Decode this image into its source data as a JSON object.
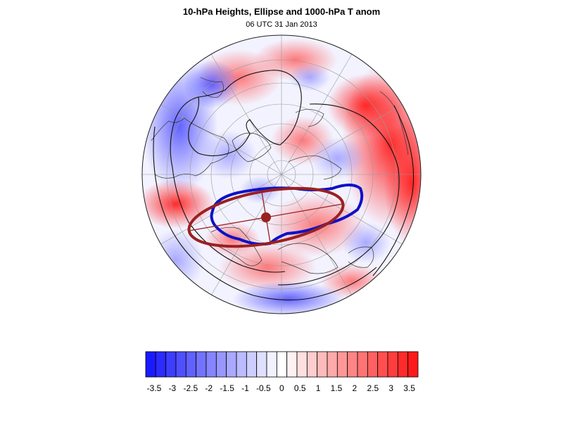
{
  "header": {
    "title": "10-hPa Heights, Ellipse and 1000-hPa T anom",
    "subtitle": "06 UTC 31 Jan 2013"
  },
  "colorbar": {
    "labels": [
      "-3.5",
      "-3",
      "-2.5",
      "-2",
      "-1.5",
      "-1",
      "-0.5",
      "0",
      "0.5",
      "1",
      "1.5",
      "2",
      "2.5",
      "3",
      "3.5"
    ],
    "colors": [
      "#1a1aff",
      "#2b2bff",
      "#3d3dff",
      "#4f4fff",
      "#6161ff",
      "#7373ff",
      "#8585ff",
      "#9797ff",
      "#a9a9ff",
      "#bbbbff",
      "#cdcdff",
      "#dfdfff",
      "#f1f1ff",
      "#ffffff",
      "#fff1f1",
      "#ffdfdf",
      "#ffcdcd",
      "#ffbbbb",
      "#ffa9a9",
      "#ff9797",
      "#ff8585",
      "#ff7373",
      "#ff6161",
      "#ff4f4f",
      "#ff3d3d",
      "#ff2b2b",
      "#ff1a1a"
    ]
  },
  "styles": {
    "ellipse_color": "#9b2020",
    "vortex_contour_color": "#0b12c8",
    "height_contour_color": "#111111",
    "warm_color": "#ff1a1a",
    "cold_color": "#1a1aff"
  }
}
